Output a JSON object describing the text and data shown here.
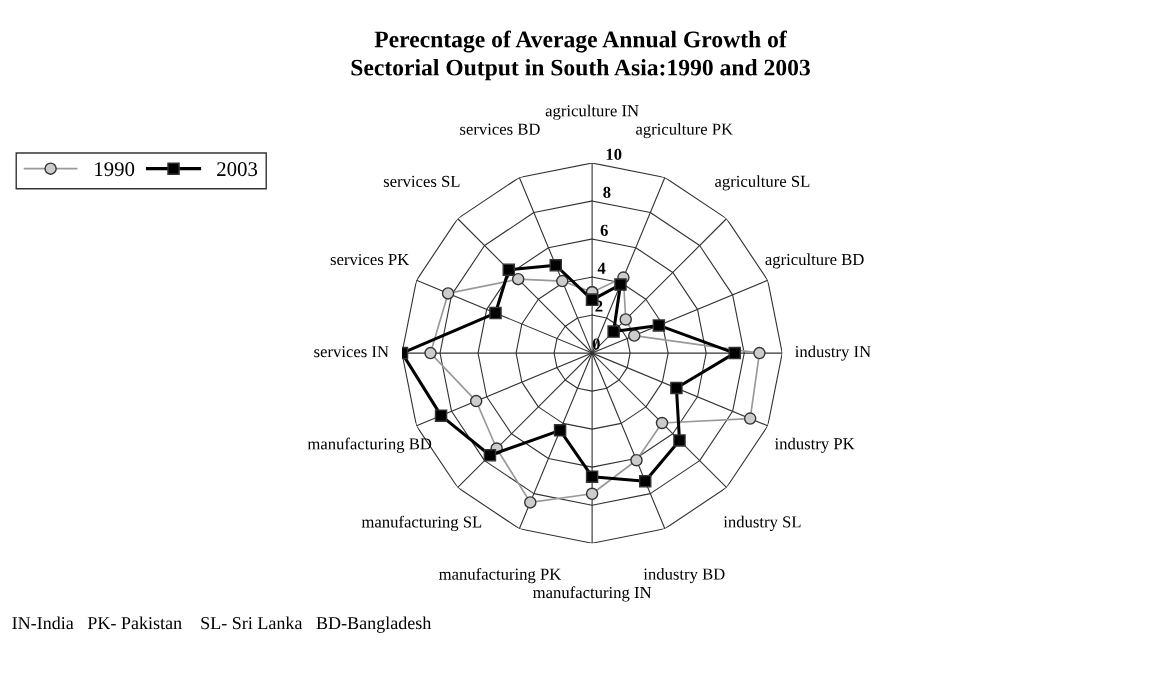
{
  "chart_data": {
    "type": "radar",
    "title": "Perecntage of Average Annual Growth of\nSectorial Output in South Asia:1990 and 2003",
    "categories": [
      "agriculture IN",
      "agriculture PK",
      "agriculture SL",
      "agriculture BD",
      "industry IN",
      "industry PK",
      "industry SL",
      "industry BD",
      "manufacturing IN",
      "manufacturing PK",
      "manufacturing SL",
      "manufacturing BD",
      "services IN",
      "services PK",
      "services SL",
      "services BD"
    ],
    "series": [
      {
        "name": "1990",
        "color": "#999999",
        "marker": "circle",
        "values": [
          3.2,
          4.3,
          2.5,
          2.4,
          8.8,
          9.0,
          5.2,
          6.1,
          7.4,
          8.5,
          7.1,
          6.6,
          8.5,
          8.2,
          5.5,
          4.1
        ]
      },
      {
        "name": "2003",
        "color": "#000000",
        "marker": "square",
        "values": [
          2.8,
          3.9,
          1.6,
          3.8,
          7.5,
          4.8,
          6.5,
          7.3,
          6.5,
          4.4,
          7.6,
          8.6,
          10.0,
          5.5,
          6.2,
          5.0
        ]
      }
    ],
    "ylim": [
      0,
      10
    ],
    "yticks": [
      0,
      2,
      4,
      6,
      8,
      10
    ],
    "grid": true,
    "legend": "top left",
    "annotations": [
      "IN-India   PK- Pakistan    SL- Sri Lanka   BD-Bangladesh"
    ]
  }
}
